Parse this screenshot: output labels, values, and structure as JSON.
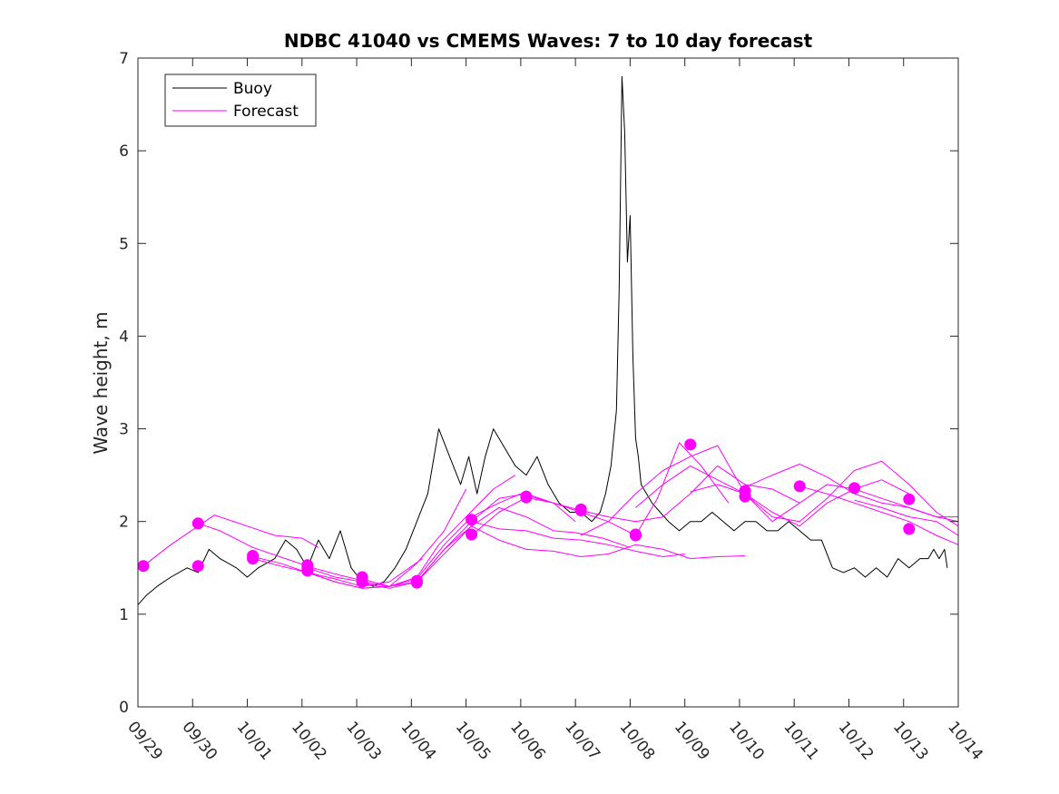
{
  "chart_data": {
    "type": "line",
    "title": "NDBC 41040 vs CMEMS Waves: 7 to 10 day forecast",
    "xlabel": "",
    "ylabel": "Wave height, m",
    "xlim": [
      0,
      15
    ],
    "ylim": [
      0,
      7
    ],
    "x_ticks": [
      0,
      1,
      2,
      3,
      4,
      5,
      6,
      7,
      8,
      9,
      10,
      11,
      12,
      13,
      14,
      15
    ],
    "x_tick_labels": [
      "09/29",
      "09/30",
      "10/01",
      "10/02",
      "10/03",
      "10/04",
      "10/05",
      "10/06",
      "10/07",
      "10/08",
      "10/09",
      "10/10",
      "10/11",
      "10/12",
      "10/13",
      "10/14"
    ],
    "y_ticks": [
      0,
      1,
      2,
      3,
      4,
      5,
      6,
      7
    ],
    "y_tick_labels": [
      "0",
      "1",
      "2",
      "3",
      "4",
      "5",
      "6",
      "7"
    ],
    "legend": {
      "placement": "top-left",
      "entries": [
        {
          "label": "Buoy",
          "color": "#000000"
        },
        {
          "label": "Forecast",
          "color": "#ff00ff"
        }
      ]
    },
    "colors": {
      "buoy": "#000000",
      "forecast": "#ff00ff",
      "axes": "#262626"
    },
    "series": [
      {
        "name": "Buoy",
        "color": "#000000",
        "x": [
          0,
          0.15,
          0.35,
          0.6,
          0.9,
          1.1,
          1.3,
          1.5,
          1.8,
          2.0,
          2.2,
          2.5,
          2.7,
          2.9,
          3.1,
          3.3,
          3.5,
          3.7,
          3.9,
          4.1,
          4.3,
          4.5,
          4.7,
          4.9,
          5.1,
          5.3,
          5.5,
          5.7,
          5.9,
          6.05,
          6.2,
          6.35,
          6.5,
          6.7,
          6.9,
          7.1,
          7.3,
          7.5,
          7.7,
          7.9,
          8.1,
          8.3,
          8.45,
          8.55,
          8.65,
          8.75,
          8.8,
          8.85,
          8.9,
          8.95,
          9.0,
          9.05,
          9.1,
          9.15,
          9.2,
          9.3,
          9.4,
          9.55,
          9.7,
          9.9,
          10.1,
          10.3,
          10.5,
          10.7,
          10.9,
          11.1,
          11.3,
          11.5,
          11.7,
          11.9,
          12.1,
          12.3,
          12.5,
          12.7,
          12.9,
          13.1,
          13.3,
          13.5,
          13.7,
          13.9,
          14.1,
          14.3,
          14.45,
          14.55,
          14.65,
          14.75,
          14.8
        ],
        "values": [
          1.1,
          1.2,
          1.3,
          1.4,
          1.5,
          1.45,
          1.7,
          1.6,
          1.5,
          1.4,
          1.5,
          1.6,
          1.8,
          1.7,
          1.5,
          1.8,
          1.6,
          1.9,
          1.5,
          1.35,
          1.3,
          1.35,
          1.5,
          1.7,
          2.0,
          2.3,
          3.0,
          2.7,
          2.4,
          2.7,
          2.3,
          2.7,
          3.0,
          2.8,
          2.6,
          2.5,
          2.7,
          2.4,
          2.2,
          2.1,
          2.1,
          2.0,
          2.1,
          2.3,
          2.6,
          3.2,
          4.5,
          6.8,
          6.2,
          4.8,
          5.3,
          3.8,
          2.9,
          2.7,
          2.4,
          2.3,
          2.2,
          2.1,
          2.0,
          1.9,
          2.0,
          2.0,
          2.1,
          2.0,
          1.9,
          2.0,
          2.0,
          1.9,
          1.9,
          2.0,
          1.9,
          1.8,
          1.8,
          1.5,
          1.45,
          1.5,
          1.4,
          1.5,
          1.4,
          1.6,
          1.5,
          1.6,
          1.6,
          1.7,
          1.6,
          1.7,
          1.5
        ]
      },
      {
        "name": "Forecast 1",
        "color": "#ff00ff",
        "x": [
          0.1,
          0.6,
          1.1,
          1.4,
          2.0,
          2.5,
          3.0,
          3.3
        ],
        "values": [
          1.52,
          1.75,
          1.95,
          2.07,
          1.95,
          1.85,
          1.82,
          1.72
        ]
      },
      {
        "name": "Forecast 2",
        "color": "#ff00ff",
        "x": [
          1.1,
          1.5,
          2.1,
          2.7,
          3.2,
          3.7,
          4.2
        ],
        "values": [
          1.98,
          1.9,
          1.72,
          1.6,
          1.5,
          1.42,
          1.35
        ]
      },
      {
        "name": "Forecast 3",
        "color": "#ff00ff",
        "x": [
          2.1,
          2.6,
          3.1,
          3.6,
          4.1,
          4.6,
          5.2
        ],
        "values": [
          1.62,
          1.55,
          1.45,
          1.38,
          1.3,
          1.35,
          1.6
        ]
      },
      {
        "name": "Forecast 4",
        "color": "#ff00ff",
        "x": [
          2.1,
          2.6,
          3.1,
          3.6,
          4.1,
          4.6,
          5.1,
          5.6,
          6.0
        ],
        "values": [
          1.6,
          1.52,
          1.45,
          1.35,
          1.28,
          1.3,
          1.55,
          1.9,
          2.35
        ]
      },
      {
        "name": "Forecast 5",
        "color": "#ff00ff",
        "x": [
          3.1,
          3.6,
          4.1,
          4.6,
          5.1,
          5.5,
          6.0,
          6.5,
          6.9
        ],
        "values": [
          1.5,
          1.4,
          1.35,
          1.3,
          1.4,
          1.75,
          2.05,
          2.35,
          2.5
        ]
      },
      {
        "name": "Forecast 6",
        "color": "#ff00ff",
        "x": [
          3.1,
          3.6,
          4.1,
          4.6,
          5.1,
          5.6,
          6.1,
          6.6,
          7.0,
          7.6,
          8.0
        ],
        "values": [
          1.45,
          1.35,
          1.28,
          1.3,
          1.38,
          1.75,
          2.05,
          2.2,
          2.3,
          2.2,
          2.0
        ]
      },
      {
        "name": "Forecast 7",
        "color": "#ff00ff",
        "x": [
          4.1,
          4.6,
          5.1,
          5.6,
          6.1,
          6.6,
          7.1,
          7.6,
          8.0,
          8.5,
          9.0
        ],
        "values": [
          1.38,
          1.3,
          1.35,
          1.65,
          1.95,
          2.15,
          2.05,
          1.9,
          1.88,
          1.82,
          1.72
        ]
      },
      {
        "name": "Forecast 8",
        "color": "#ff00ff",
        "x": [
          4.1,
          4.6,
          5.1,
          5.6,
          6.1,
          6.6,
          7.1,
          7.6,
          8.1,
          8.6,
          9.1,
          9.6,
          10.0
        ],
        "values": [
          1.33,
          1.28,
          1.35,
          1.7,
          2.0,
          1.92,
          1.9,
          1.82,
          1.8,
          1.75,
          1.68,
          1.62,
          1.65
        ]
      },
      {
        "name": "Forecast 9",
        "color": "#ff00ff",
        "x": [
          5.1,
          5.6,
          6.1,
          6.6,
          7.1,
          7.6,
          8.1,
          8.6,
          9.1,
          9.6,
          10.1,
          10.6,
          11.1
        ],
        "values": [
          1.35,
          1.7,
          1.95,
          1.8,
          1.7,
          1.68,
          1.62,
          1.65,
          1.75,
          1.7,
          1.6,
          1.62,
          1.63
        ]
      },
      {
        "name": "Forecast 10",
        "color": "#ff00ff",
        "x": [
          6.1,
          6.6,
          7.1,
          7.6,
          8.1,
          8.6,
          9.1,
          9.6,
          10.1,
          10.6,
          11.1,
          11.6,
          12.1
        ],
        "values": [
          2.0,
          2.25,
          2.3,
          2.2,
          2.12,
          2.05,
          2.0,
          2.05,
          2.3,
          2.6,
          2.4,
          2.35,
          2.2
        ]
      },
      {
        "name": "Forecast 11",
        "color": "#ff00ff",
        "x": [
          6.1,
          6.6,
          7.1,
          7.6,
          8.1,
          8.6,
          9.1,
          9.5,
          9.9,
          10.3,
          10.8
        ],
        "values": [
          1.85,
          2.1,
          2.26,
          2.2,
          2.1,
          2.0,
          1.85,
          2.25,
          2.85,
          2.6,
          2.2
        ]
      },
      {
        "name": "Forecast 12",
        "color": "#ff00ff",
        "x": [
          8.1,
          8.6,
          9.1,
          9.6,
          10.1,
          10.6,
          11.1,
          11.6,
          12.1,
          12.6,
          13.1
        ],
        "values": [
          1.85,
          2.0,
          2.3,
          2.55,
          2.7,
          2.82,
          2.3,
          2.0,
          2.2,
          2.4,
          2.35
        ]
      },
      {
        "name": "Forecast 13",
        "color": "#ff00ff",
        "x": [
          9.1,
          9.6,
          10.1,
          10.6,
          11.1,
          11.6,
          12.1,
          12.6,
          13.1,
          13.6,
          14.1
        ],
        "values": [
          2.15,
          2.4,
          2.6,
          2.45,
          2.3,
          2.1,
          1.95,
          2.2,
          2.35,
          2.45,
          2.3
        ]
      },
      {
        "name": "Forecast 14",
        "color": "#ff00ff",
        "x": [
          10.1,
          10.6,
          11.1,
          11.6,
          12.1,
          12.6,
          13.1,
          13.6,
          14.1,
          14.6,
          15.0
        ],
        "values": [
          2.32,
          2.4,
          2.3,
          2.05,
          2.0,
          2.25,
          2.55,
          2.65,
          2.4,
          2.1,
          1.95
        ]
      },
      {
        "name": "Forecast 15",
        "color": "#ff00ff",
        "x": [
          11.1,
          11.6,
          12.1,
          12.6,
          13.1,
          13.6,
          14.1,
          14.6,
          15.0
        ],
        "values": [
          2.37,
          2.5,
          2.62,
          2.48,
          2.3,
          2.2,
          2.15,
          2.05,
          2.0
        ]
      },
      {
        "name": "Forecast 16",
        "color": "#ff00ff",
        "x": [
          12.1,
          12.6,
          13.1,
          13.6,
          14.1,
          14.6,
          15.0
        ],
        "values": [
          2.38,
          2.3,
          2.2,
          2.1,
          2.0,
          1.85,
          1.75
        ]
      },
      {
        "name": "Forecast 17",
        "color": "#ff00ff",
        "x": [
          13.1,
          13.6,
          14.1,
          14.6,
          15.0
        ],
        "values": [
          2.23,
          2.15,
          2.05,
          2.0,
          1.85
        ]
      },
      {
        "name": "Forecast 18",
        "color": "#ff00ff",
        "x": [
          13.1,
          13.6,
          14.1,
          14.6,
          15.0
        ],
        "values": [
          2.35,
          2.25,
          2.15,
          2.05,
          2.05
        ]
      }
    ],
    "forecast_markers": {
      "x": [
        0.1,
        1.1,
        1.1,
        2.1,
        2.1,
        3.1,
        3.1,
        3.1,
        4.1,
        4.1,
        5.1,
        5.1,
        6.1,
        6.1,
        7.1,
        7.1,
        8.1,
        8.1,
        9.1,
        9.1,
        10.1,
        11.1,
        11.1,
        12.1,
        13.1,
        14.1,
        14.1
      ],
      "values": [
        1.52,
        1.98,
        1.52,
        1.63,
        1.6,
        1.53,
        1.5,
        1.47,
        1.4,
        1.35,
        1.36,
        1.34,
        2.02,
        1.86,
        2.26,
        2.27,
        2.12,
        2.13,
        1.85,
        1.86,
        2.83,
        2.33,
        2.27,
        2.38,
        2.36,
        2.24,
        1.92
      ]
    }
  }
}
